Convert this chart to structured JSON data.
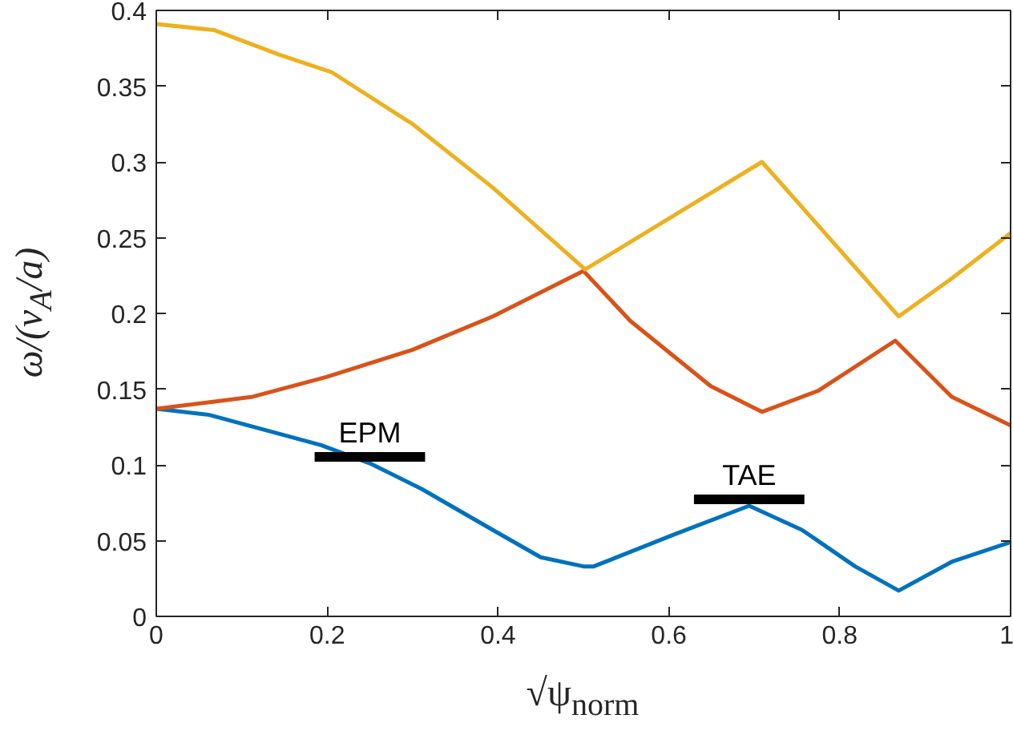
{
  "chart_data": {
    "type": "line",
    "xlabel": "√ψ$_{norm}$",
    "ylabel": "ω/(v$_{A}$/a)",
    "xlim": [
      0,
      1
    ],
    "xticks": [
      0,
      0.2,
      0.4,
      0.6,
      0.8,
      1
    ],
    "ylim": [
      0,
      0.4
    ],
    "yticks": [
      0,
      0.05,
      0.1,
      0.15,
      0.2,
      0.25,
      0.3,
      0.35,
      0.4
    ],
    "grid": false,
    "line_style": "solid",
    "marker": "none",
    "series": [
      {
        "color": "#0072bd",
        "x": [
          0,
          0.062,
          0.193,
          0.25,
          0.311,
          0.394,
          0.45,
          0.5,
          0.512,
          0.606,
          0.694,
          0.756,
          0.818,
          0.869,
          0.931,
          1.0
        ],
        "values": [
          0.137,
          0.133,
          0.113,
          0.101,
          0.084,
          0.057,
          0.039,
          0.033,
          0.033,
          0.054,
          0.073,
          0.057,
          0.033,
          0.017,
          0.036,
          0.049
        ]
      },
      {
        "color": "#d95319",
        "x": [
          0,
          0.113,
          0.199,
          0.3,
          0.394,
          0.5,
          0.555,
          0.649,
          0.709,
          0.775,
          0.865,
          0.931,
          1.0
        ],
        "values": [
          0.137,
          0.145,
          0.158,
          0.176,
          0.198,
          0.228,
          0.195,
          0.152,
          0.135,
          0.149,
          0.182,
          0.145,
          0.126
        ]
      },
      {
        "color": "#edb120",
        "x": [
          0,
          0.068,
          0.143,
          0.206,
          0.3,
          0.394,
          0.502,
          0.709,
          0.869,
          0.931,
          1.0
        ],
        "values": [
          0.391,
          0.387,
          0.371,
          0.359,
          0.325,
          0.283,
          0.229,
          0.3,
          0.198,
          0.223,
          0.253
        ]
      }
    ],
    "annotations": [
      {
        "text": "EPM",
        "x": 0.25,
        "y": 0.101
      },
      {
        "text": "TAE",
        "x": 0.694,
        "y": 0.073
      }
    ]
  }
}
